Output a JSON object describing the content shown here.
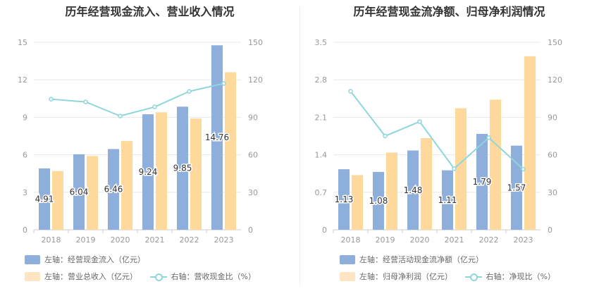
{
  "colors": {
    "bar1": "#8eaedb",
    "bar2": "#ffd99b",
    "line": "#8fd6dc",
    "grid": "#e8e8e8",
    "axis_text": "#999999"
  },
  "chart_data": [
    {
      "type": "bar",
      "title": "历年经营现金流入、营业收入情况",
      "categories": [
        "2018",
        "2019",
        "2020",
        "2021",
        "2022",
        "2023"
      ],
      "left_axis": {
        "ylim": [
          0,
          15
        ],
        "ticks": [
          "0",
          "3",
          "6",
          "9",
          "12",
          "15"
        ]
      },
      "right_axis": {
        "ylim": [
          0,
          150
        ],
        "ticks": [
          "0",
          "30",
          "60",
          "90",
          "120",
          "150"
        ]
      },
      "series": [
        {
          "name": "左轴：经营现金流入（亿元）",
          "kind": "bar",
          "axis": "left",
          "color": "#8eaedb",
          "values": [
            4.91,
            6.04,
            6.46,
            9.24,
            9.85,
            14.76
          ],
          "labels": [
            "4.91",
            "6.04",
            "6.46",
            "9.24",
            "9.85",
            "14.76"
          ]
        },
        {
          "name": "左轴：营业总收入（亿元）",
          "kind": "bar",
          "axis": "left",
          "color": "#ffd99b",
          "values": [
            4.7,
            5.9,
            7.1,
            9.4,
            8.9,
            12.6
          ]
        },
        {
          "name": "右轴：营收现金比（%）",
          "kind": "line",
          "axis": "right",
          "color": "#8fd6dc",
          "values": [
            104.5,
            102.3,
            91.0,
            98.3,
            110.7,
            117.1
          ]
        }
      ],
      "legend": [
        "左轴：经营现金流入（亿元）",
        "左轴：营业总收入（亿元）",
        "右轴：营收现金比（%）"
      ]
    },
    {
      "type": "bar",
      "title": "历年经营现金流净额、归母净利润情况",
      "categories": [
        "2018",
        "2019",
        "2020",
        "2021",
        "2022",
        "2023"
      ],
      "left_axis": {
        "ylim": [
          0,
          3.5
        ],
        "ticks": [
          "0",
          "0.7",
          "1.4",
          "2.1",
          "2.8",
          "3.5"
        ]
      },
      "right_axis": {
        "ylim": [
          0,
          150
        ],
        "ticks": [
          "0",
          "30",
          "60",
          "90",
          "120",
          "150"
        ]
      },
      "series": [
        {
          "name": "左轴：经营活动现金流净额（亿元）",
          "kind": "bar",
          "axis": "left",
          "color": "#8eaedb",
          "values": [
            1.13,
            1.08,
            1.48,
            1.11,
            1.79,
            1.57
          ],
          "labels": [
            "1.13",
            "1.08",
            "1.48",
            "1.11",
            "1.79",
            "1.57"
          ]
        },
        {
          "name": "左轴：归母净利润（亿元）",
          "kind": "bar",
          "axis": "left",
          "color": "#ffd99b",
          "values": [
            1.02,
            1.44,
            1.71,
            2.27,
            2.43,
            3.24
          ]
        },
        {
          "name": "右轴：净现比（%）",
          "kind": "line",
          "axis": "right",
          "color": "#8fd6dc",
          "values": [
            110.8,
            75.0,
            86.5,
            48.9,
            73.7,
            48.5
          ]
        }
      ],
      "legend": [
        "左轴：经营活动现金流净额（亿元）",
        "左轴：归母净利润（亿元）",
        "右轴：净现比（%）"
      ]
    }
  ]
}
